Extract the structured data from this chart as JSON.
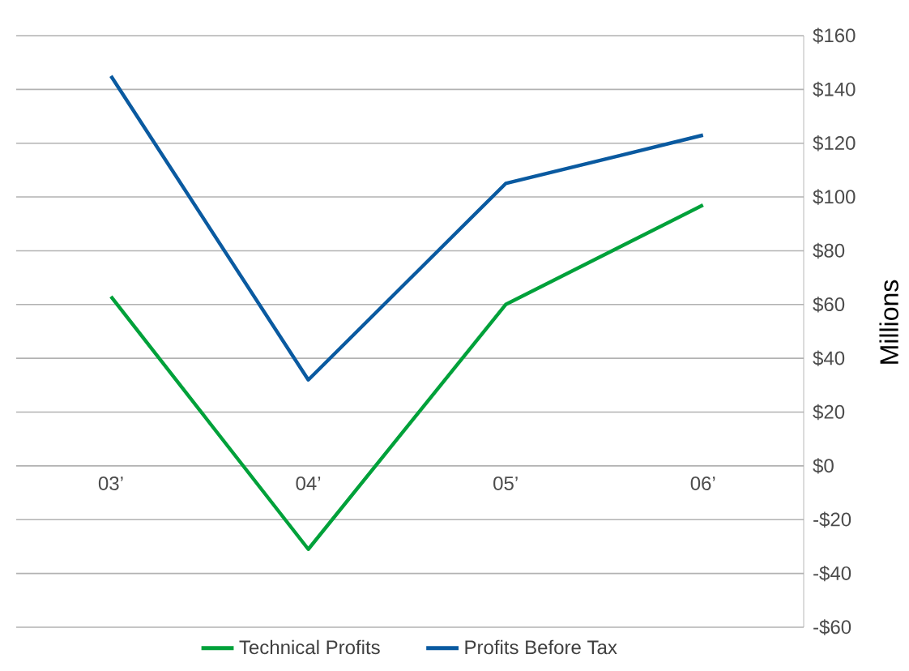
{
  "chart_data": {
    "type": "line",
    "ylabel": "Millions",
    "categories": [
      "03’",
      "04’",
      "05’",
      "06’"
    ],
    "series": [
      {
        "name": "Technical Profits",
        "color": "#00a13a",
        "values": [
          63,
          -31,
          60,
          97
        ]
      },
      {
        "name": "Profits Before Tax",
        "color": "#0a5aa0",
        "values": [
          145,
          32,
          105,
          123
        ]
      }
    ],
    "ylim": [
      -60,
      160
    ],
    "yticks": [
      {
        "value": -60,
        "label": "-$60"
      },
      {
        "value": -40,
        "label": "-$40"
      },
      {
        "value": -20,
        "label": "-$20"
      },
      {
        "value": 0,
        "label": "$0"
      },
      {
        "value": 20,
        "label": "$20"
      },
      {
        "value": 40,
        "label": "$40"
      },
      {
        "value": 60,
        "label": "$60"
      },
      {
        "value": 80,
        "label": "$80"
      },
      {
        "value": 100,
        "label": "$100"
      },
      {
        "value": 120,
        "label": "$120"
      },
      {
        "value": 140,
        "label": "$140"
      },
      {
        "value": 160,
        "label": "$160"
      }
    ],
    "grid": "y",
    "legend": "bottom",
    "line_style": "solid",
    "marker": "none"
  }
}
